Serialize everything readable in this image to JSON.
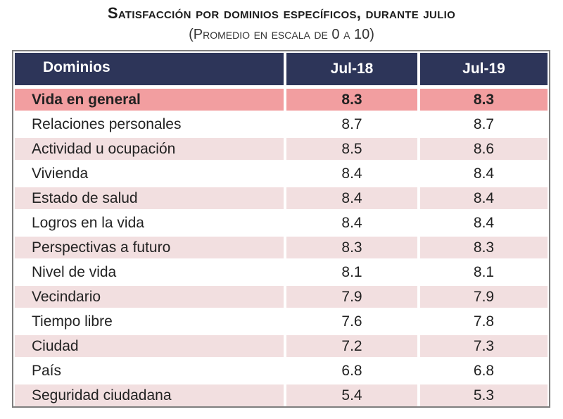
{
  "title": "Satisfacción por dominios específicos, durante julio",
  "subtitle": "(Promedio en escala de 0 a 10)",
  "table": {
    "headers": [
      "Dominios",
      "Jul-18",
      "Jul-19"
    ],
    "rows": [
      {
        "domain": "Vida en general",
        "jul18": "8.3",
        "jul19": "8.3"
      },
      {
        "domain": "Relaciones personales",
        "jul18": "8.7",
        "jul19": "8.7"
      },
      {
        "domain": "Actividad u ocupación",
        "jul18": "8.5",
        "jul19": "8.6"
      },
      {
        "domain": "Vivienda",
        "jul18": "8.4",
        "jul19": "8.4"
      },
      {
        "domain": "Estado de salud",
        "jul18": "8.4",
        "jul19": "8.4"
      },
      {
        "domain": "Logros en la vida",
        "jul18": "8.4",
        "jul19": "8.4"
      },
      {
        "domain": "Perspectivas a futuro",
        "jul18": "8.3",
        "jul19": "8.3"
      },
      {
        "domain": "Nivel de vida",
        "jul18": "8.1",
        "jul19": "8.1"
      },
      {
        "domain": "Vecindario",
        "jul18": "7.9",
        "jul19": "7.9"
      },
      {
        "domain": "Tiempo libre",
        "jul18": "7.6",
        "jul19": "7.8"
      },
      {
        "domain": "Ciudad",
        "jul18": "7.2",
        "jul19": "7.3"
      },
      {
        "domain": "País",
        "jul18": "6.8",
        "jul19": "6.8"
      },
      {
        "domain": "Seguridad ciudadana",
        "jul18": "5.4",
        "jul19": "5.3"
      }
    ]
  },
  "colors": {
    "header_bg": "#2d3559",
    "highlight_row": "#f29ea0",
    "alt_row": "#f2dfe0",
    "border": "#7e7e7e"
  }
}
